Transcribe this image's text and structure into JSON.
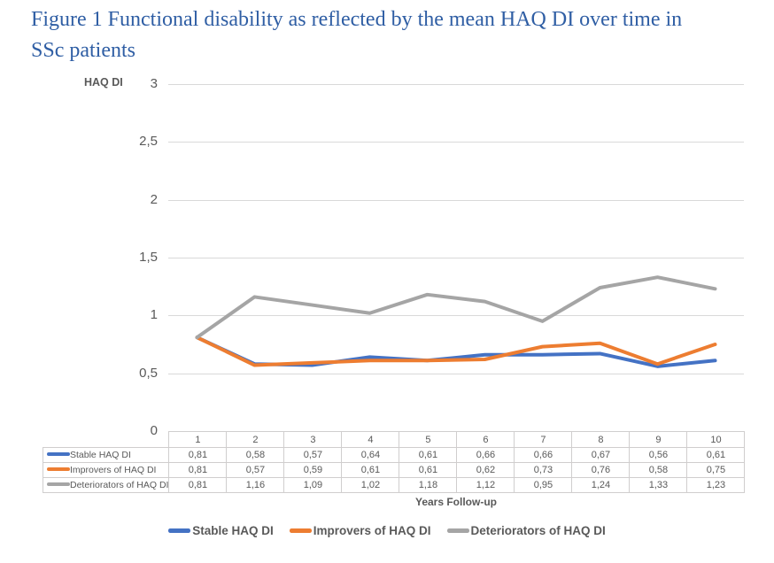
{
  "title": "Figure 1 Functional disability as reflected by the mean HAQ DI over time in SSc patients",
  "colors": {
    "title_text": "#2F5EA4",
    "axis_text": "#595959",
    "gridline": "#D9D9D9",
    "table_border": "#D0CECE"
  },
  "chart_data": {
    "type": "line",
    "title": "Functional disability as reflected by the mean HAQ DI over time in SSc patients",
    "ylabel": "HAQ DI",
    "xlabel": "Years Follow-up",
    "categories": [
      "1",
      "2",
      "3",
      "4",
      "5",
      "6",
      "7",
      "8",
      "9",
      "10"
    ],
    "ylim": [
      0,
      3
    ],
    "ytick_labels": [
      "3",
      "2,5",
      "2",
      "1,5",
      "1",
      "0,5",
      "0"
    ],
    "ytick_step": 0.5,
    "grid": true,
    "legend_position": "bottom",
    "decimal_separator": ",",
    "data_table_shown": true,
    "series": [
      {
        "name": "Stable HAQ DI",
        "color": "#4472C4",
        "values": [
          0.81,
          0.58,
          0.57,
          0.64,
          0.61,
          0.66,
          0.66,
          0.67,
          0.56,
          0.61
        ]
      },
      {
        "name": "Improvers of HAQ DI",
        "color": "#ED7D31",
        "values": [
          0.81,
          0.57,
          0.59,
          0.61,
          0.61,
          0.62,
          0.73,
          0.76,
          0.58,
          0.75
        ]
      },
      {
        "name": "Deteriorators of HAQ DI",
        "color": "#A5A5A5",
        "values": [
          0.81,
          1.16,
          1.09,
          1.02,
          1.18,
          1.12,
          0.95,
          1.24,
          1.33,
          1.23
        ]
      }
    ]
  }
}
